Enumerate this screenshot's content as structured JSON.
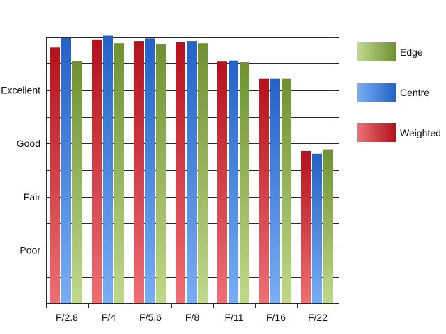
{
  "chart_data": {
    "type": "bar",
    "categories": [
      "F/2.8",
      "F/4",
      "F/5.6",
      "F/8",
      "F/11",
      "F/16",
      "F/22"
    ],
    "ylim": [
      0,
      5
    ],
    "y_tick_labels": [
      {
        "value": 1,
        "label": "Poor"
      },
      {
        "value": 2,
        "label": "Fair"
      },
      {
        "value": 3,
        "label": "Good"
      },
      {
        "value": 4,
        "label": "Excellent"
      }
    ],
    "grid": true,
    "legend_position": "right",
    "series": [
      {
        "name": "Weighted",
        "color": "#c8202e",
        "values": [
          4.8,
          4.95,
          4.92,
          4.9,
          4.54,
          4.22,
          2.86
        ]
      },
      {
        "name": "Centre",
        "color": "#2f6fd0",
        "values": [
          4.98,
          5.02,
          4.97,
          4.92,
          4.56,
          4.22,
          2.81
        ]
      },
      {
        "name": "Edge",
        "color": "#8aab3e",
        "values": [
          4.55,
          4.88,
          4.87,
          4.88,
          4.53,
          4.22,
          2.89
        ]
      }
    ],
    "legend_order": [
      "Edge",
      "Centre",
      "Weighted"
    ]
  }
}
